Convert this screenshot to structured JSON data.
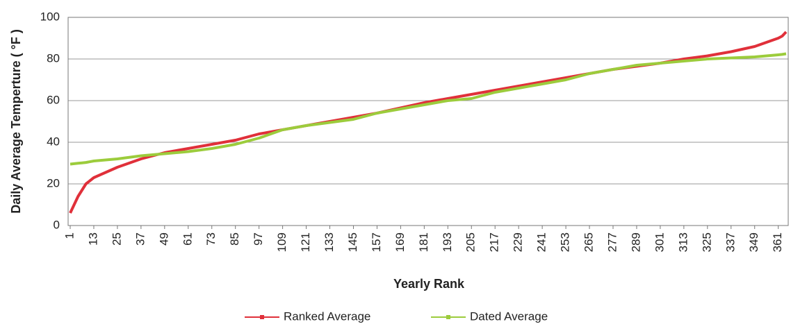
{
  "chart_data": {
    "type": "line",
    "x_label": "Yearly Rank",
    "y_label": "Daily Average Temperture ( °F )",
    "x": [
      1,
      3,
      5,
      7,
      9,
      13,
      25,
      37,
      49,
      61,
      73,
      85,
      97,
      109,
      121,
      133,
      145,
      157,
      169,
      181,
      193,
      205,
      217,
      229,
      241,
      253,
      265,
      277,
      289,
      301,
      313,
      325,
      337,
      349,
      355,
      361,
      363,
      365
    ],
    "series": [
      {
        "name": "Ranked Average",
        "color": "#e0303a",
        "values": [
          6,
          10,
          14,
          17,
          20,
          23,
          28,
          32,
          35,
          37,
          39,
          41,
          44,
          46,
          48,
          50,
          52,
          54,
          56.5,
          59,
          61,
          63,
          65,
          67,
          69,
          71,
          73,
          75,
          76.5,
          78,
          80,
          81.5,
          83.5,
          86,
          88,
          90,
          91,
          93
        ]
      },
      {
        "name": "Dated Average",
        "color": "#9ccc3c",
        "values": [
          29.5,
          29.7,
          29.9,
          30.1,
          30.3,
          31,
          32,
          33.5,
          34.5,
          35.5,
          37,
          39,
          42,
          46,
          48,
          49.5,
          51,
          54,
          56,
          58,
          60,
          61,
          64,
          66,
          68,
          70,
          73,
          75,
          77,
          78,
          79,
          80,
          80.5,
          81,
          81.5,
          82,
          82.2,
          82.5
        ]
      }
    ],
    "xlim": [
      1,
      365
    ],
    "xticks": [
      1,
      13,
      25,
      37,
      49,
      61,
      73,
      85,
      97,
      109,
      121,
      133,
      145,
      157,
      169,
      181,
      193,
      205,
      217,
      229,
      241,
      253,
      265,
      277,
      289,
      301,
      313,
      325,
      337,
      349,
      361
    ],
    "ylim": [
      0,
      100
    ],
    "yticks": [
      0,
      20,
      40,
      60,
      80,
      100
    ],
    "grid": true,
    "legend": "bottom"
  }
}
